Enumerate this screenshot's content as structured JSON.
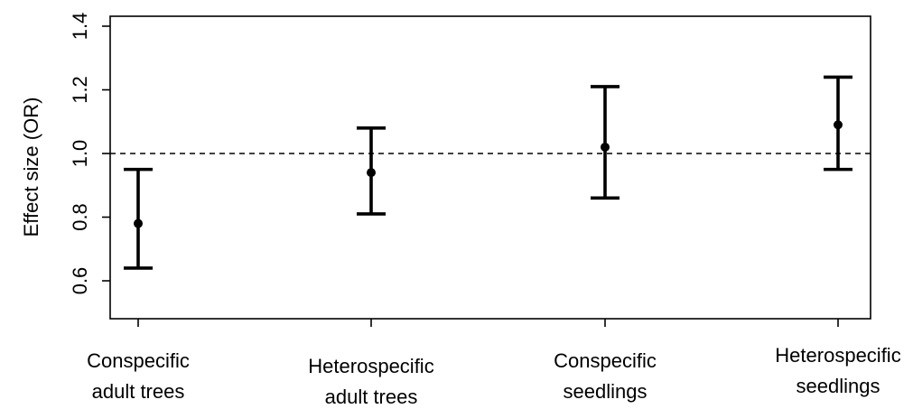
{
  "chart_data": {
    "type": "errorbar",
    "ylabel": "Effect size (OR)",
    "xlabel": "",
    "ylim": [
      0.6,
      1.4
    ],
    "yticks": [
      "0.6",
      "0.8",
      "1.0",
      "1.2",
      "1.4"
    ],
    "reference_line": {
      "y": 1.0,
      "style": "dashed"
    },
    "categories": [
      {
        "line1": "Conspecific",
        "line2": "adult trees"
      },
      {
        "line1": "Heterospecific",
        "line2": "adult trees"
      },
      {
        "line1": "Conspecific",
        "line2": "seedlings"
      },
      {
        "line1": "Heterospecific",
        "line2": "seedlings"
      }
    ],
    "points": [
      {
        "estimate": 0.78,
        "lower": 0.64,
        "upper": 0.95
      },
      {
        "estimate": 0.94,
        "lower": 0.81,
        "upper": 1.08
      },
      {
        "estimate": 1.02,
        "lower": 0.86,
        "upper": 1.21
      },
      {
        "estimate": 1.09,
        "lower": 0.95,
        "upper": 1.24
      }
    ],
    "grid": false,
    "legend": "none"
  }
}
